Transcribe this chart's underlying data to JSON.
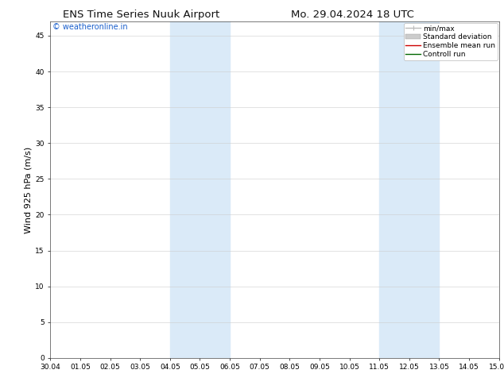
{
  "title_left": "ENS Time Series Nuuk Airport",
  "title_right": "Mo. 29.04.2024 18 UTC",
  "ylabel": "Wind 925 hPa (m/s)",
  "watermark": "© weatheronline.in",
  "xlim": [
    0,
    15
  ],
  "ylim": [
    0,
    47
  ],
  "yticks": [
    0,
    5,
    10,
    15,
    20,
    25,
    30,
    35,
    40,
    45
  ],
  "xtick_labels": [
    "30.04",
    "01.05",
    "02.05",
    "03.05",
    "04.05",
    "05.05",
    "06.05",
    "07.05",
    "08.05",
    "09.05",
    "10.05",
    "11.05",
    "12.05",
    "13.05",
    "14.05",
    "15.05"
  ],
  "xtick_positions": [
    0,
    1,
    2,
    3,
    4,
    5,
    6,
    7,
    8,
    9,
    10,
    11,
    12,
    13,
    14,
    15
  ],
  "shaded_bands": [
    {
      "xmin": 4.0,
      "xmax": 6.0
    },
    {
      "xmin": 11.0,
      "xmax": 13.0
    }
  ],
  "band_color": "#daeaf8",
  "background_color": "#ffffff",
  "plot_bg_color": "#ffffff",
  "legend_items": [
    {
      "label": "min/max",
      "color": "#bbbbbb",
      "lw": 1.0,
      "style": "minmax"
    },
    {
      "label": "Standard deviation",
      "color": "#cccccc",
      "lw": 5,
      "style": "fill"
    },
    {
      "label": "Ensemble mean run",
      "color": "#cc0000",
      "lw": 1.0,
      "style": "line"
    },
    {
      "label": "Controll run",
      "color": "#006600",
      "lw": 1.0,
      "style": "line"
    }
  ],
  "title_fontsize": 9.5,
  "tick_fontsize": 6.5,
  "ylabel_fontsize": 8,
  "watermark_fontsize": 7,
  "legend_fontsize": 6.5
}
